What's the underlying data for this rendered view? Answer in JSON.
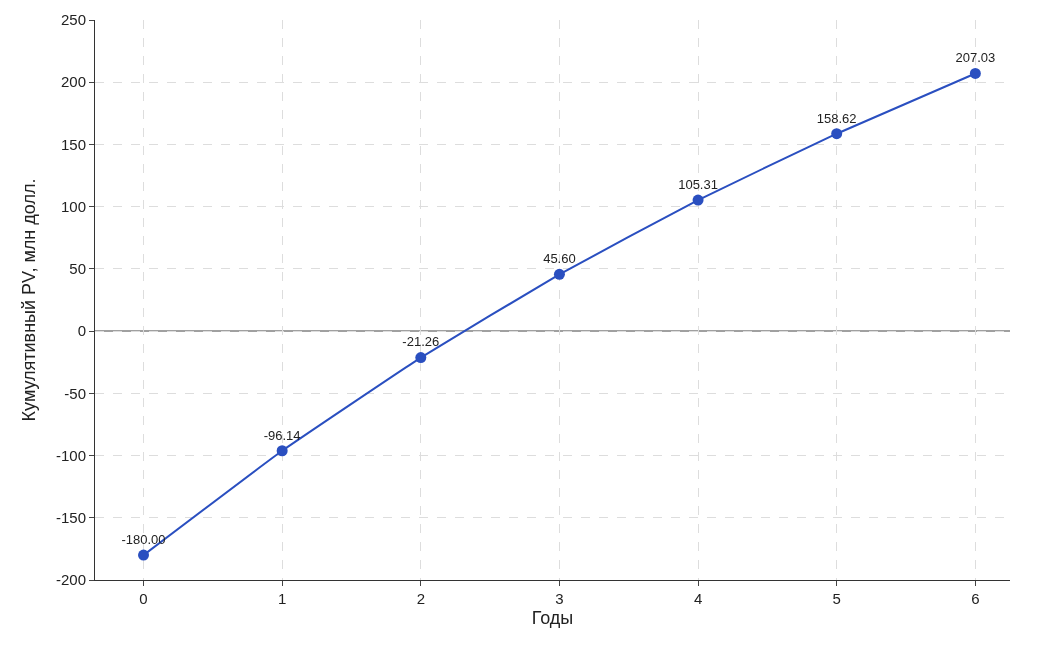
{
  "chart_data": {
    "type": "line",
    "xlabel": "Годы",
    "ylabel": "Кумулятивный PV, млн долл.",
    "x": [
      0,
      1,
      2,
      3,
      4,
      5,
      6
    ],
    "series": [
      {
        "color": "#2a4fc0",
        "values": [
          -180.0,
          -96.14,
          -21.26,
          45.6,
          105.31,
          158.62,
          207.03
        ],
        "value_labels": [
          "-180.00",
          "-96.14",
          "-21.26",
          "45.60",
          "105.31",
          "158.62",
          "207.03"
        ]
      }
    ],
    "xlim": [
      -0.35,
      6.25
    ],
    "xticks": [
      0,
      1,
      2,
      3,
      4,
      5,
      6
    ],
    "ylim": [
      -200,
      250
    ],
    "yticks": [
      -200,
      -150,
      -100,
      -50,
      0,
      50,
      100,
      150,
      200,
      250
    ],
    "ref_lines": [
      {
        "axis": "y",
        "value": 0,
        "color": "#a0a0a0",
        "line_style": "solid"
      }
    ],
    "grid": true,
    "marker": "circle",
    "line_style": "solid"
  }
}
